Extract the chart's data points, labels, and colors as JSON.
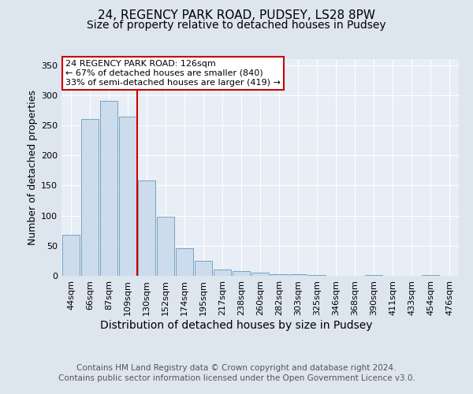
{
  "title1": "24, REGENCY PARK ROAD, PUDSEY, LS28 8PW",
  "title2": "Size of property relative to detached houses in Pudsey",
  "xlabel": "Distribution of detached houses by size in Pudsey",
  "ylabel": "Number of detached properties",
  "categories": [
    "44sqm",
    "66sqm",
    "87sqm",
    "109sqm",
    "130sqm",
    "152sqm",
    "174sqm",
    "195sqm",
    "217sqm",
    "238sqm",
    "260sqm",
    "282sqm",
    "303sqm",
    "325sqm",
    "346sqm",
    "368sqm",
    "390sqm",
    "411sqm",
    "433sqm",
    "454sqm",
    "476sqm"
  ],
  "values": [
    68,
    260,
    290,
    265,
    158,
    98,
    46,
    25,
    10,
    8,
    5,
    3,
    2,
    1,
    0,
    0,
    1,
    0,
    0,
    1,
    0
  ],
  "bar_color": "#ccdcec",
  "bar_edge_color": "#6699bb",
  "vline_color": "#cc0000",
  "vline_bar_index": 4,
  "annotation_line1": "24 REGENCY PARK ROAD: 126sqm",
  "annotation_line2": "← 67% of detached houses are smaller (840)",
  "annotation_line3": "33% of semi-detached houses are larger (419) →",
  "annotation_box_color": "#ffffff",
  "annotation_box_edge_color": "#cc0000",
  "ylim": [
    0,
    360
  ],
  "yticks": [
    0,
    50,
    100,
    150,
    200,
    250,
    300,
    350
  ],
  "background_color": "#dde5ef",
  "plot_bg_color": "#e8eef5",
  "footer_line1": "Contains HM Land Registry data © Crown copyright and database right 2024.",
  "footer_line2": "Contains public sector information licensed under the Open Government Licence v3.0.",
  "title1_fontsize": 11,
  "title2_fontsize": 10,
  "xlabel_fontsize": 10,
  "ylabel_fontsize": 9,
  "tick_fontsize": 8,
  "annot_fontsize": 8,
  "footer_fontsize": 7.5
}
